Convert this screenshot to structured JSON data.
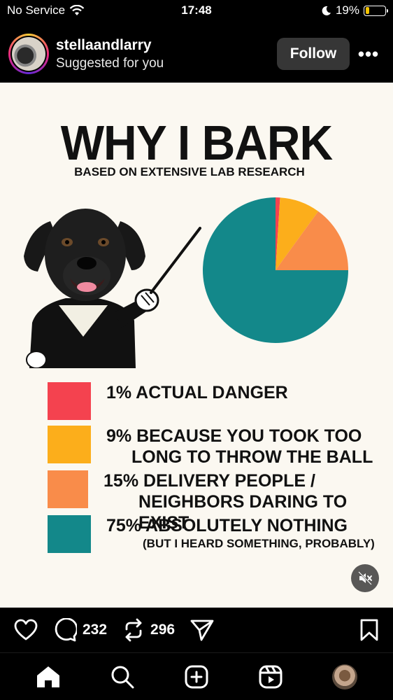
{
  "status_bar": {
    "carrier": "No Service",
    "time": "17:48",
    "battery": "19%",
    "battery_level": 0.19,
    "icons": [
      "wifi-icon",
      "moon-icon",
      "battery-icon"
    ]
  },
  "header": {
    "username": "stellaandlarry",
    "subtitle": "Suggested for you",
    "follow_label": "Follow",
    "more_label": "•••"
  },
  "post": {
    "title": "WHY I BARK",
    "subtitle": "BASED ON EXTENSIVE LAB RESEARCH",
    "legend": [
      {
        "color": "#f4424f",
        "lines": [
          "1% ACTUAL DANGER"
        ],
        "sub": ""
      },
      {
        "color": "#fcae1b",
        "lines": [
          "9% BECAUSE YOU TOOK TOO",
          "LONG TO THROW THE BALL"
        ],
        "sub": ""
      },
      {
        "color": "#f98c4a",
        "lines": [
          "15% DELIVERY PEOPLE /",
          "NEIGHBORS DARING TO EXIST"
        ],
        "sub": ""
      },
      {
        "color": "#13888a",
        "lines": [
          "75% ABSOLUTELY NOTHING"
        ],
        "sub": "(BUT I HEARD SOMETHING, PROBABLY)"
      }
    ]
  },
  "chart_data": {
    "type": "pie",
    "categories": [
      "ACTUAL DANGER",
      "BECAUSE YOU TOOK TOO LONG TO THROW THE BALL",
      "DELIVERY PEOPLE / NEIGHBORS DARING TO EXIST",
      "ABSOLUTELY NOTHING"
    ],
    "values": [
      1,
      9,
      15,
      75
    ],
    "colors": [
      "#f4424f",
      "#fcae1b",
      "#f98c4a",
      "#13888a"
    ],
    "title": "WHY I BARK",
    "subtitle": "BASED ON EXTENSIVE LAB RESEARCH",
    "legend": "bottom"
  },
  "actions": {
    "comment_count": "232",
    "repost_count": "296"
  },
  "tabs": [
    "home-icon",
    "search-icon",
    "create-icon",
    "reels-icon",
    "profile-avatar"
  ]
}
